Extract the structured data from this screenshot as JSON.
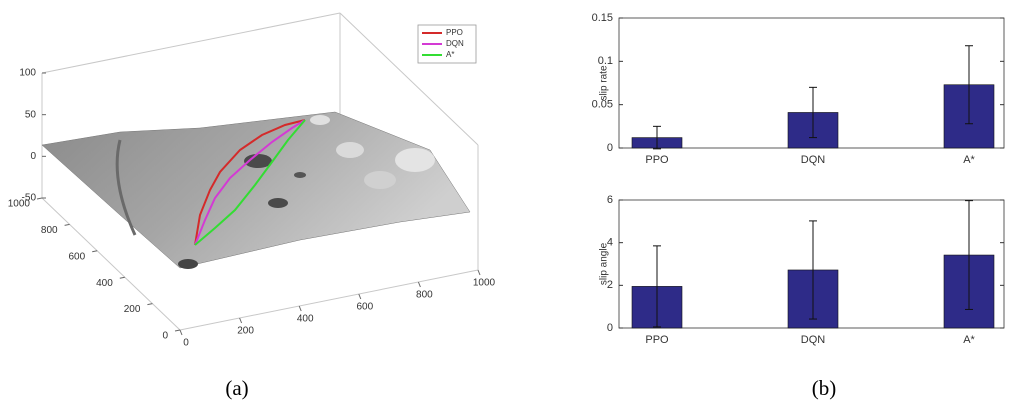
{
  "captions": [
    "(a)",
    "(b)"
  ],
  "chart_data": [
    {
      "type": "surface3d",
      "series": [
        {
          "name": "PPO",
          "color": "#d42a2a"
        },
        {
          "name": "DQN",
          "color": "#d43ad4"
        },
        {
          "name": "A*",
          "color": "#33dd33"
        }
      ],
      "xlim": [
        0,
        1000
      ],
      "xticks": [
        0,
        200,
        400,
        600,
        800,
        1000
      ],
      "ylim": [
        0,
        1000
      ],
      "yticks": [
        0,
        200,
        400,
        600,
        800,
        1000
      ],
      "zlim": [
        -50,
        100
      ],
      "zticks": [
        -50,
        0,
        50,
        100
      ]
    },
    {
      "type": "bar",
      "y_label": "slip rate",
      "categories": [
        "PPO",
        "DQN",
        "A*"
      ],
      "values": [
        0.012,
        0.041,
        0.073
      ],
      "errors": [
        0.013,
        0.029,
        0.045
      ],
      "color": "#2e2b88",
      "ylim": [
        0,
        0.15
      ],
      "yticks": [
        0,
        0.05,
        0.1,
        0.15
      ]
    },
    {
      "type": "bar",
      "y_label": "slip angle",
      "categories": [
        "PPO",
        "DQN",
        "A*"
      ],
      "values": [
        1.95,
        2.72,
        3.42
      ],
      "errors": [
        1.9,
        2.3,
        2.55
      ],
      "color": "#2e2b88",
      "ylim": [
        0,
        6
      ],
      "yticks": [
        0,
        2,
        4,
        6
      ]
    }
  ]
}
